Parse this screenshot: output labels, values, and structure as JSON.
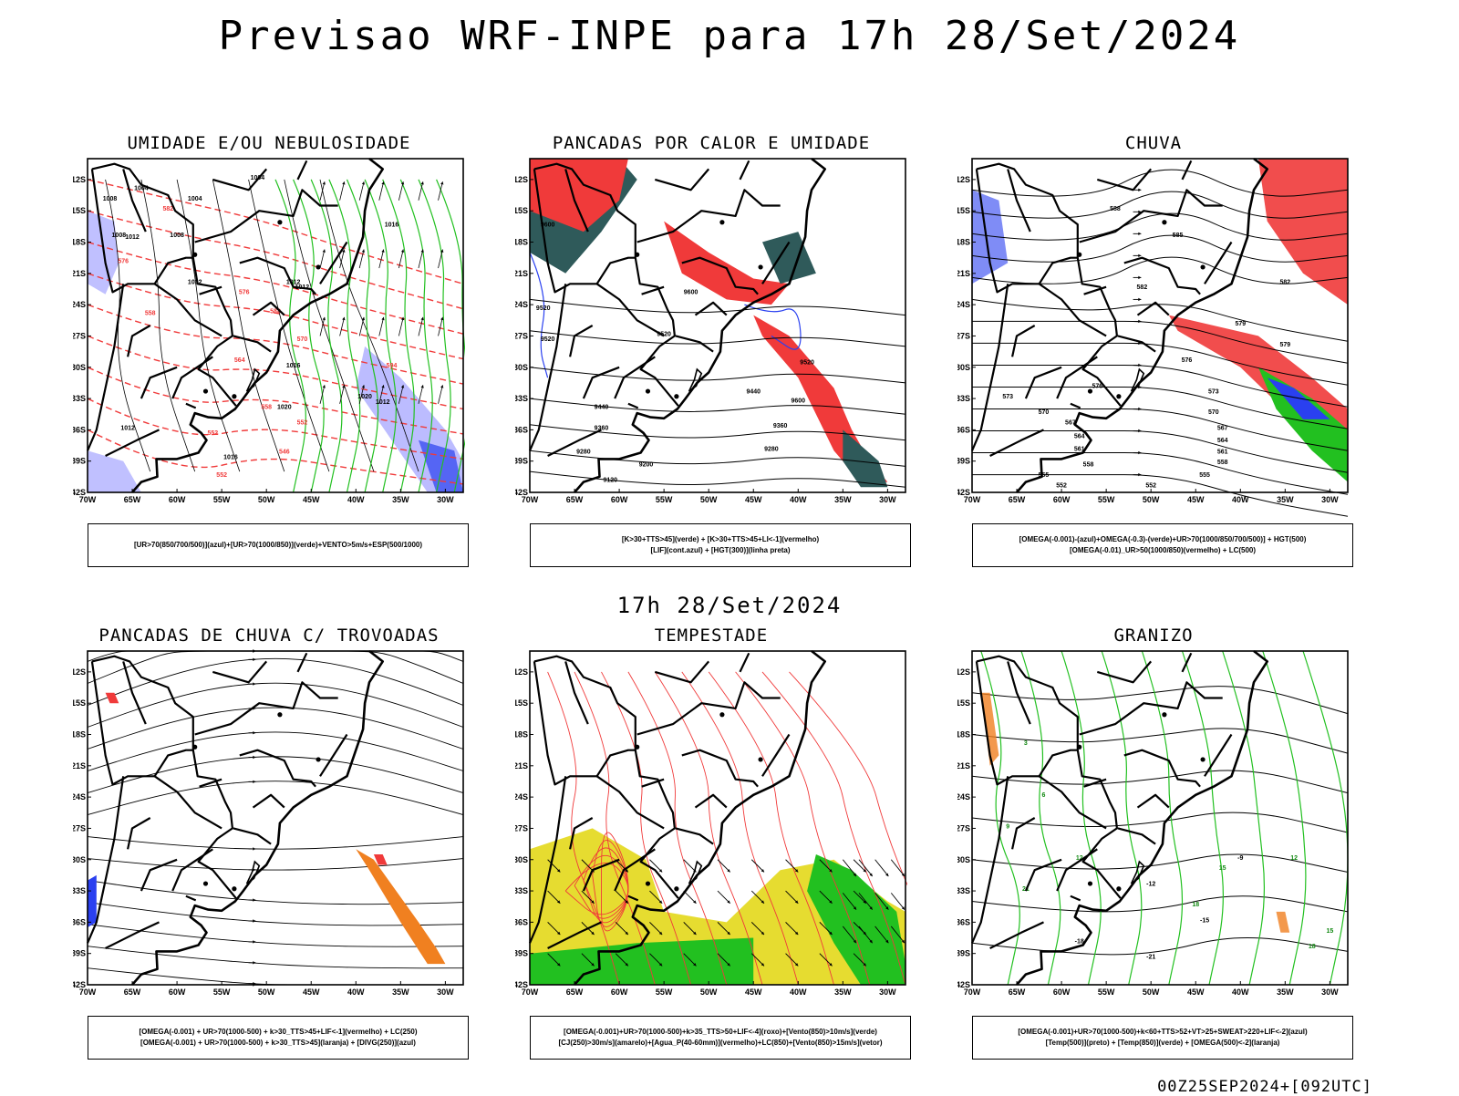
{
  "header": {
    "title": "Previsao WRF-INPE  para 17h 28/Set/2024"
  },
  "middle": {
    "title": "17h 28/Set/2024"
  },
  "footer": {
    "run_label": "00Z25SEP2024+[092UTC]"
  },
  "axes": {
    "lat_labels": [
      "12S",
      "15S",
      "18S",
      "21S",
      "24S",
      "27S",
      "30S",
      "33S",
      "36S",
      "39S",
      "42S"
    ],
    "lon_labels": [
      "70W",
      "65W",
      "60W",
      "55W",
      "50W",
      "45W",
      "40W",
      "35W",
      "30W"
    ]
  },
  "colors": {
    "red": "#f03a3a",
    "green": "#22c020",
    "blue": "#2a40f0",
    "orange": "#f08020",
    "yellow": "#e6dc30",
    "teal": "#2f5a5a",
    "lavender": "#b0b0ff"
  },
  "panels": [
    {
      "id": "umidade",
      "title": "UMIDADE E/OU NEBULOSIDADE",
      "legend": [
        "[UR>70(850/700/500)](azul)+[UR>70(1000/850)](verde)+VENTO>5m/s+ESP(500/1000)"
      ],
      "labels": [
        "1004",
        "1004",
        "1008",
        "1012",
        "1008",
        "1012",
        "1016",
        "1020",
        "1020",
        "1016",
        "1012",
        "1012",
        "1012",
        "1016",
        "1008",
        "1012",
        "1004",
        "552",
        "576",
        "570",
        "564",
        "558",
        "552",
        "546",
        "552",
        "558",
        "576",
        "582",
        "588",
        "594"
      ]
    },
    {
      "id": "pancadas_calor",
      "title": "PANCADAS POR CALOR E UMIDADE",
      "legend": [
        "[K>30+TTS>45](verde) + [K>30+TTS>45+LI<-1](vermelho)",
        "[LIF](cont.azul) + [HGT(300)](linha preta)"
      ],
      "labels": [
        "9600",
        "9520",
        "9600",
        "9520",
        "9520",
        "9600",
        "9520",
        "9440",
        "9440",
        "9360",
        "9360",
        "9280",
        "9280",
        "9200",
        "9120"
      ]
    },
    {
      "id": "chuva",
      "title": "CHUVA",
      "legend": [
        "[OMEGA(-0.001)-(azul)+OMEGA(-0.3)-(verde)+UR>70(1000/850/700/500)] + HGT(500)",
        "[OMEGA(-0.01)_UR>50(1000/850)(vermelho) + LC(500)"
      ],
      "labels": [
        "588",
        "585",
        "582",
        "579",
        "576",
        "573",
        "570",
        "567",
        "564",
        "561",
        "558",
        "555",
        "552",
        "582",
        "579",
        "576",
        "573",
        "570",
        "567",
        "564",
        "561",
        "558",
        "555",
        "552"
      ]
    },
    {
      "id": "pancadas_trovoadas",
      "title": "PANCADAS DE CHUVA C/ TROVOADAS",
      "legend": [
        "[OMEGA(-0.001) + UR>70(1000-500) + k>30_TTS>45+LIF<-1](vermelho) + LC(250)",
        "[OMEGA(-0.001) + UR>70(1000-500) + k>30_TTS>45](laranja) + [DIVG(250)](azul)"
      ],
      "labels": []
    },
    {
      "id": "tempestade",
      "title": "TEMPESTADE",
      "legend": [
        "[OMEGA(-0.001)+UR>70(1000-500)+k>35_TTS>50+LIF<-4](roxo)+[Vento(850)>10m/s](verde)",
        "[CJ(250)>30m/s](amarelo)+[Agua_P(40-60mm)](vermelho)+LC(850)+[Vento(850)>15m/s](vetor)"
      ],
      "labels": []
    },
    {
      "id": "granizo",
      "title": "GRANIZO",
      "legend": [
        "[OMEGA(-0.001)+UR>70(1000-500)+k<60+TTS>52+VT>25+SWEAT>220+LIF<-2](azul)",
        "[Temp(500)](preto) + [Temp(850)](verde) + [OMEGA(500)<-2](laranja)"
      ],
      "labels": [
        "-9",
        "-12",
        "-15",
        "-18",
        "-21",
        "3",
        "6",
        "9",
        "12",
        "15",
        "18",
        "21",
        "12",
        "15",
        "18"
      ]
    }
  ]
}
